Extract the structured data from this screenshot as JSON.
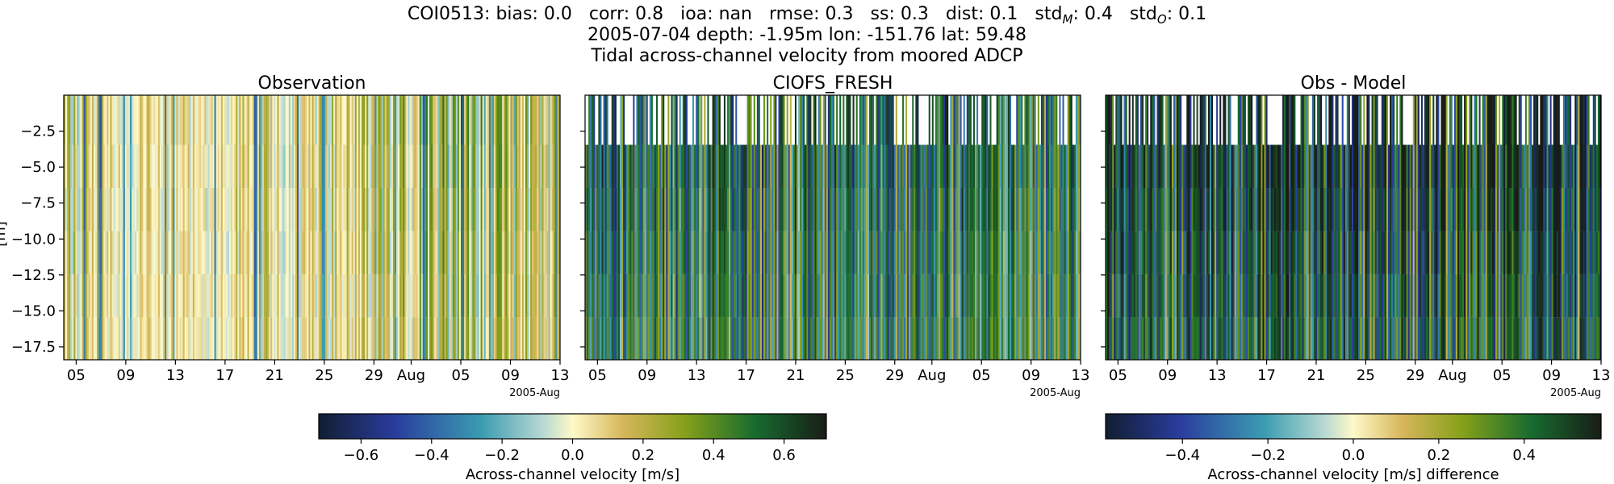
{
  "figure": {
    "title_station": "COI0513",
    "title_stats": [
      {
        "label": "bias",
        "value": "0.0"
      },
      {
        "label": "corr",
        "value": "0.8"
      },
      {
        "label": "ioa",
        "value": "nan"
      },
      {
        "label": "rmse",
        "value": "0.3"
      },
      {
        "label": "ss",
        "value": "0.3"
      },
      {
        "label": "dist",
        "value": "0.1"
      },
      {
        "label": "std",
        "sub": "M",
        "value": "0.4"
      },
      {
        "label": "std",
        "sub": "O",
        "value": "0.1"
      }
    ],
    "title_line2": "2005-07-04 depth: -1.95m lon: -151.76 lat: 59.48",
    "title_line3": "Tidal across-channel velocity from moored ADCP",
    "ylabel_fragment": "[m]"
  },
  "chart_data": [
    {
      "type": "heatmap",
      "title": "Observation",
      "colormap": "delta",
      "ylim": [
        -18.4,
        0.0
      ],
      "yticks": [
        -2.5,
        -5.0,
        -7.5,
        -10.0,
        -12.5,
        -15.0,
        -17.5
      ],
      "yticklabels": [
        "−2.5",
        "−5.0",
        "−7.5",
        "−10.0",
        "−12.5",
        "−15.0",
        "−17.5"
      ],
      "xlim": [
        "2005-07-04",
        "2005-08-13"
      ],
      "xticklabels": [
        "05",
        "09",
        "13",
        "17",
        "21",
        "25",
        "29",
        "Aug",
        "05",
        "09",
        "13"
      ],
      "xoffset_label": "2005-Aug",
      "depth_levels": [
        -1.95,
        -4.95,
        -7.95,
        -10.95,
        -13.95,
        -16.95
      ],
      "vmin": -0.72,
      "vmax": 0.72,
      "colorbar_label": "Across-channel velocity [m/s]",
      "colorbar_ticks": [
        -0.6,
        -0.4,
        -0.2,
        0.0,
        0.2,
        0.4,
        0.6
      ],
      "colorbar_ticklabels": [
        "−0.6",
        "−0.4",
        "−0.2",
        "0.0",
        "0.2",
        "0.4",
        "0.6"
      ]
    },
    {
      "type": "heatmap",
      "title": "CIOFS_FRESH",
      "colormap": "delta",
      "ylim": [
        -18.4,
        0.0
      ],
      "yticks": [
        -2.5,
        -5.0,
        -7.5,
        -10.0,
        -12.5,
        -15.0,
        -17.5
      ],
      "xlim": [
        "2005-07-04",
        "2005-08-13"
      ],
      "xticklabels": [
        "05",
        "09",
        "13",
        "17",
        "21",
        "25",
        "29",
        "Aug",
        "05",
        "09",
        "13"
      ],
      "xoffset_label": "2005-Aug",
      "vmin": -0.72,
      "vmax": 0.72
    },
    {
      "type": "heatmap",
      "title": "Obs - Model",
      "colormap": "delta",
      "ylim": [
        -18.4,
        0.0
      ],
      "yticks": [
        -2.5,
        -5.0,
        -7.5,
        -10.0,
        -12.5,
        -15.0,
        -17.5
      ],
      "xlim": [
        "2005-07-04",
        "2005-08-13"
      ],
      "xticklabels": [
        "05",
        "09",
        "13",
        "17",
        "21",
        "25",
        "29",
        "Aug",
        "05",
        "09",
        "13"
      ],
      "xoffset_label": "2005-Aug",
      "vmin": -0.58,
      "vmax": 0.58,
      "colorbar_label": "Across-channel velocity [m/s] difference",
      "colorbar_ticks": [
        -0.4,
        -0.2,
        0.0,
        0.2,
        0.4
      ],
      "colorbar_ticklabels": [
        "−0.4",
        "−0.2",
        "0.0",
        "0.2",
        "0.4"
      ]
    }
  ]
}
